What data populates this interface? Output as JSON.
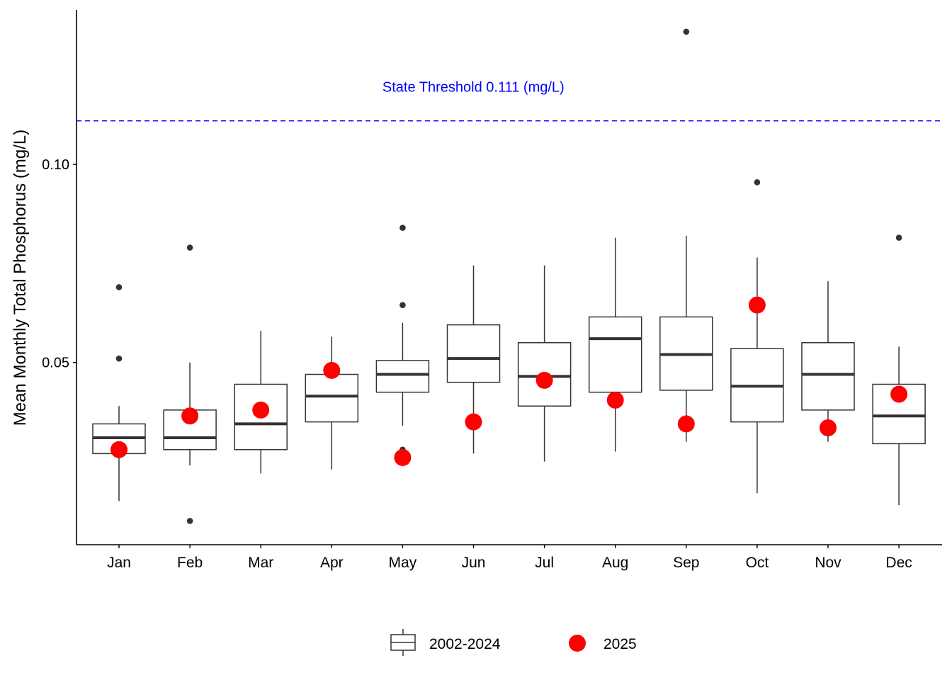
{
  "chart_data": {
    "type": "box",
    "ylabel": "Mean Monthly Total Phosphorus (mg/L)",
    "xlabel": "",
    "categories": [
      "Jan",
      "Feb",
      "Mar",
      "Apr",
      "May",
      "Jun",
      "Jul",
      "Aug",
      "Sep",
      "Oct",
      "Nov",
      "Dec"
    ],
    "yticks": [
      0.05,
      0.1
    ],
    "ytick_labels": [
      "0.05",
      "0.10"
    ],
    "ylim": [
      0.004,
      0.139
    ],
    "grid": false,
    "threshold": {
      "value": 0.111,
      "label": "State Threshold 0.111 (mg/L)",
      "color": "#0000ff",
      "style": "dashed",
      "label_x_category": "Apr"
    },
    "box_series": {
      "name": "2002-2024",
      "boxes": [
        {
          "category": "Jan",
          "whisker_low": 0.015,
          "q1": 0.027,
          "median": 0.031,
          "q3": 0.0345,
          "whisker_high": 0.039,
          "outliers": [
            0.069,
            0.051
          ]
        },
        {
          "category": "Feb",
          "whisker_low": 0.024,
          "q1": 0.028,
          "median": 0.031,
          "q3": 0.038,
          "whisker_high": 0.05,
          "outliers": [
            0.079,
            0.01
          ]
        },
        {
          "category": "Mar",
          "whisker_low": 0.022,
          "q1": 0.028,
          "median": 0.0345,
          "q3": 0.0445,
          "whisker_high": 0.058,
          "outliers": []
        },
        {
          "category": "Apr",
          "whisker_low": 0.023,
          "q1": 0.035,
          "median": 0.0415,
          "q3": 0.047,
          "whisker_high": 0.0565,
          "outliers": []
        },
        {
          "category": "May",
          "whisker_low": 0.034,
          "q1": 0.0425,
          "median": 0.047,
          "q3": 0.0505,
          "whisker_high": 0.06,
          "outliers": [
            0.084,
            0.0645,
            0.028
          ]
        },
        {
          "category": "Jun",
          "whisker_low": 0.027,
          "q1": 0.045,
          "median": 0.051,
          "q3": 0.0595,
          "whisker_high": 0.0745,
          "outliers": []
        },
        {
          "category": "Jul",
          "whisker_low": 0.025,
          "q1": 0.039,
          "median": 0.0465,
          "q3": 0.055,
          "whisker_high": 0.0745,
          "outliers": []
        },
        {
          "category": "Aug",
          "whisker_low": 0.0275,
          "q1": 0.0425,
          "median": 0.056,
          "q3": 0.0615,
          "whisker_high": 0.0815,
          "outliers": []
        },
        {
          "category": "Sep",
          "whisker_low": 0.03,
          "q1": 0.043,
          "median": 0.052,
          "q3": 0.0615,
          "whisker_high": 0.082,
          "outliers": [
            0.1335
          ]
        },
        {
          "category": "Oct",
          "whisker_low": 0.017,
          "q1": 0.035,
          "median": 0.044,
          "q3": 0.0535,
          "whisker_high": 0.0765,
          "outliers": [
            0.0955
          ]
        },
        {
          "category": "Nov",
          "whisker_low": 0.03,
          "q1": 0.038,
          "median": 0.047,
          "q3": 0.055,
          "whisker_high": 0.0705,
          "outliers": []
        },
        {
          "category": "Dec",
          "whisker_low": 0.014,
          "q1": 0.0295,
          "median": 0.0365,
          "q3": 0.0445,
          "whisker_high": 0.054,
          "outliers": [
            0.0815
          ]
        }
      ]
    },
    "point_series": {
      "name": "2025",
      "color": "#ff0000",
      "values": [
        0.028,
        0.0365,
        0.038,
        0.048,
        0.026,
        0.035,
        0.0455,
        0.0405,
        0.0345,
        0.0645,
        0.0335,
        0.042
      ]
    },
    "legend": {
      "placement": "bottom",
      "items": [
        {
          "label": "2002-2024",
          "kind": "box"
        },
        {
          "label": "2025",
          "kind": "point",
          "color": "#ff0000"
        }
      ]
    }
  }
}
